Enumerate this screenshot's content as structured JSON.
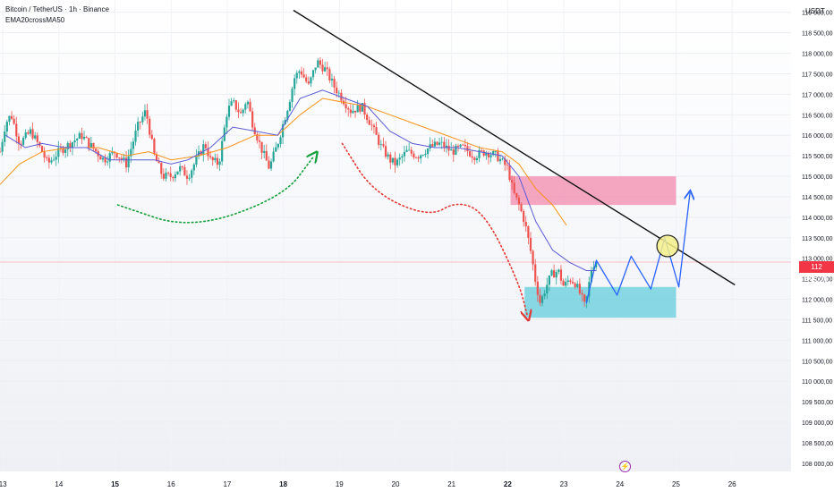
{
  "header": {
    "title": "Bitcoin / TetherUS · 1h · Binance",
    "indicator": "EMA20crossMA50"
  },
  "axis": {
    "unit": "USDT",
    "price_label": "112 906,04"
  },
  "colors": {
    "up": "#26a69a",
    "down": "#ef5350",
    "ema": "#5b5bd6",
    "ma": "#f7931a",
    "trendline": "#111111",
    "resistance_zone": "#f06292",
    "support_zone": "#4dc8d8",
    "projection": "#2962ff",
    "green_arrow": "#13a03a",
    "red_arrow": "#e53935",
    "circle": "#f4f08a",
    "price_line": "#f23645"
  },
  "events": {
    "icon": "lightning-icon"
  },
  "chart_data": {
    "type": "candlestick",
    "title": "Bitcoin / TetherUS · 1h · Binance",
    "y_axis": {
      "side": "right",
      "range": [
        107800,
        119300
      ],
      "ticks": [
        "119 000,00",
        "118 500,00",
        "118 000,00",
        "117 500,00",
        "117 000,00",
        "116 500,00",
        "116 000,00",
        "115 500,00",
        "115 000,00",
        "114 500,00",
        "114 000,00",
        "113 500,00",
        "113 000,00",
        "112 500,00",
        "112 000,00",
        "111 500,00",
        "111 000,00",
        "110 500,00",
        "110 000,00",
        "109 500,00",
        "109 000,00",
        "108 500,00",
        "108 000,00"
      ],
      "tick_values": [
        119000,
        118500,
        118000,
        117500,
        117000,
        116500,
        116000,
        115500,
        115000,
        114500,
        114000,
        113500,
        113000,
        112500,
        112000,
        111500,
        111000,
        110500,
        110000,
        109500,
        109000,
        108500,
        108000
      ]
    },
    "x_axis": {
      "labels": [
        "13",
        "14",
        "15",
        "16",
        "17",
        "18",
        "19",
        "20",
        "21",
        "22",
        "23",
        "24",
        "25",
        "26"
      ],
      "label_days": [
        13,
        14,
        15,
        16,
        17,
        18,
        19,
        20,
        21,
        22,
        23,
        24,
        25,
        26
      ],
      "bold": [
        "15",
        "18",
        "22"
      ],
      "range_days": [
        12.95,
        27.05
      ]
    },
    "current_price": 112906.04,
    "price_path": [
      [
        12.95,
        115600
      ],
      [
        13.05,
        116300
      ],
      [
        13.15,
        116500
      ],
      [
        13.3,
        115800
      ],
      [
        13.5,
        116100
      ],
      [
        13.7,
        115600
      ],
      [
        13.8,
        115300
      ],
      [
        14.0,
        115600
      ],
      [
        14.2,
        115800
      ],
      [
        14.4,
        116000
      ],
      [
        14.6,
        115700
      ],
      [
        14.8,
        115400
      ],
      [
        15.0,
        115600
      ],
      [
        15.2,
        115300
      ],
      [
        15.4,
        116200
      ],
      [
        15.55,
        116600
      ],
      [
        15.7,
        115500
      ],
      [
        15.85,
        115000
      ],
      [
        16.0,
        115000
      ],
      [
        16.15,
        115200
      ],
      [
        16.3,
        115000
      ],
      [
        16.45,
        115400
      ],
      [
        16.6,
        115800
      ],
      [
        16.7,
        115400
      ],
      [
        16.85,
        115300
      ],
      [
        17.0,
        116600
      ],
      [
        17.1,
        116800
      ],
      [
        17.25,
        116500
      ],
      [
        17.35,
        116900
      ],
      [
        17.45,
        116300
      ],
      [
        17.6,
        115700
      ],
      [
        17.75,
        115200
      ],
      [
        17.9,
        115800
      ],
      [
        18.0,
        116300
      ],
      [
        18.1,
        116800
      ],
      [
        18.2,
        117400
      ],
      [
        18.3,
        117600
      ],
      [
        18.45,
        117200
      ],
      [
        18.6,
        117800
      ],
      [
        18.75,
        117600
      ],
      [
        18.9,
        117200
      ],
      [
        19.05,
        116900
      ],
      [
        19.2,
        116600
      ],
      [
        19.4,
        116700
      ],
      [
        19.55,
        116300
      ],
      [
        19.75,
        115700
      ],
      [
        19.9,
        115400
      ],
      [
        20.0,
        115300
      ],
      [
        20.2,
        115600
      ],
      [
        20.4,
        115500
      ],
      [
        20.6,
        115700
      ],
      [
        20.8,
        115800
      ],
      [
        21.0,
        115600
      ],
      [
        21.2,
        115700
      ],
      [
        21.4,
        115500
      ],
      [
        21.6,
        115600
      ],
      [
        21.8,
        115500
      ],
      [
        22.0,
        115200
      ],
      [
        22.1,
        114600
      ],
      [
        22.2,
        114300
      ],
      [
        22.3,
        113900
      ],
      [
        22.42,
        113100
      ],
      [
        22.5,
        112400
      ],
      [
        22.58,
        111900
      ],
      [
        22.68,
        112300
      ],
      [
        22.78,
        112600
      ],
      [
        22.9,
        112700
      ],
      [
        23.0,
        112300
      ],
      [
        23.1,
        112500
      ],
      [
        23.2,
        112400
      ],
      [
        23.3,
        112100
      ],
      [
        23.38,
        111800
      ],
      [
        23.5,
        112800
      ],
      [
        23.58,
        112950
      ]
    ],
    "ema_path": [
      [
        13.05,
        116000
      ],
      [
        13.4,
        115700
      ],
      [
        13.7,
        115800
      ],
      [
        14.1,
        115700
      ],
      [
        14.5,
        115700
      ],
      [
        14.9,
        115400
      ],
      [
        15.3,
        115400
      ],
      [
        15.7,
        115400
      ],
      [
        16.0,
        115300
      ],
      [
        16.3,
        115400
      ],
      [
        16.7,
        115700
      ],
      [
        17.1,
        116200
      ],
      [
        17.5,
        116100
      ],
      [
        17.9,
        116000
      ],
      [
        18.3,
        116900
      ],
      [
        18.7,
        117100
      ],
      [
        19.1,
        116900
      ],
      [
        19.5,
        116700
      ],
      [
        19.9,
        116100
      ],
      [
        20.3,
        115800
      ],
      [
        20.7,
        115700
      ],
      [
        21.1,
        115700
      ],
      [
        21.5,
        115600
      ],
      [
        21.9,
        115500
      ],
      [
        22.2,
        115000
      ],
      [
        22.5,
        113900
      ],
      [
        22.8,
        113200
      ],
      [
        23.1,
        112900
      ],
      [
        23.4,
        112700
      ],
      [
        23.58,
        112700
      ]
    ],
    "ma_path": [
      [
        12.95,
        114800
      ],
      [
        13.3,
        115300
      ],
      [
        13.7,
        115600
      ],
      [
        14.2,
        115700
      ],
      [
        14.7,
        115700
      ],
      [
        15.2,
        115500
      ],
      [
        15.6,
        115600
      ],
      [
        16.0,
        115400
      ],
      [
        16.5,
        115500
      ],
      [
        17.0,
        115700
      ],
      [
        17.5,
        116000
      ],
      [
        17.9,
        116000
      ],
      [
        18.3,
        116500
      ],
      [
        18.7,
        116900
      ],
      [
        19.1,
        116800
      ],
      [
        19.5,
        116700
      ],
      [
        19.9,
        116500
      ],
      [
        20.3,
        116300
      ],
      [
        20.7,
        116100
      ],
      [
        21.1,
        115900
      ],
      [
        21.5,
        115700
      ],
      [
        21.9,
        115600
      ],
      [
        22.2,
        115300
      ],
      [
        22.5,
        114700
      ],
      [
        22.8,
        114300
      ],
      [
        23.05,
        113800
      ]
    ],
    "trendline": [
      [
        18.18,
        119050
      ],
      [
        26.05,
        112350
      ]
    ],
    "resistance_zone": {
      "from_day": 22.05,
      "to_day": 25.0,
      "low": 114300,
      "high": 115000
    },
    "support_zone": {
      "from_day": 22.3,
      "to_day": 25.0,
      "low": 111550,
      "high": 112300
    },
    "projection_path": [
      [
        23.4,
        111900
      ],
      [
        23.58,
        112950
      ],
      [
        23.95,
        112100
      ],
      [
        24.2,
        113050
      ],
      [
        24.55,
        112250
      ],
      [
        24.8,
        113500
      ],
      [
        25.05,
        112300
      ],
      [
        25.25,
        114600
      ]
    ],
    "breakout_circle": {
      "day": 24.85,
      "price": 113300
    },
    "green_arrow_path": [
      [
        15.05,
        114300
      ],
      [
        16.35,
        113700
      ],
      [
        18.0,
        114500
      ],
      [
        18.55,
        115500
      ]
    ],
    "red_arrow_path": [
      [
        19.05,
        115800
      ],
      [
        19.6,
        114600
      ],
      [
        20.6,
        114000
      ],
      [
        21.1,
        114400
      ],
      [
        21.6,
        114100
      ],
      [
        22.2,
        112400
      ],
      [
        22.35,
        111600
      ]
    ]
  }
}
